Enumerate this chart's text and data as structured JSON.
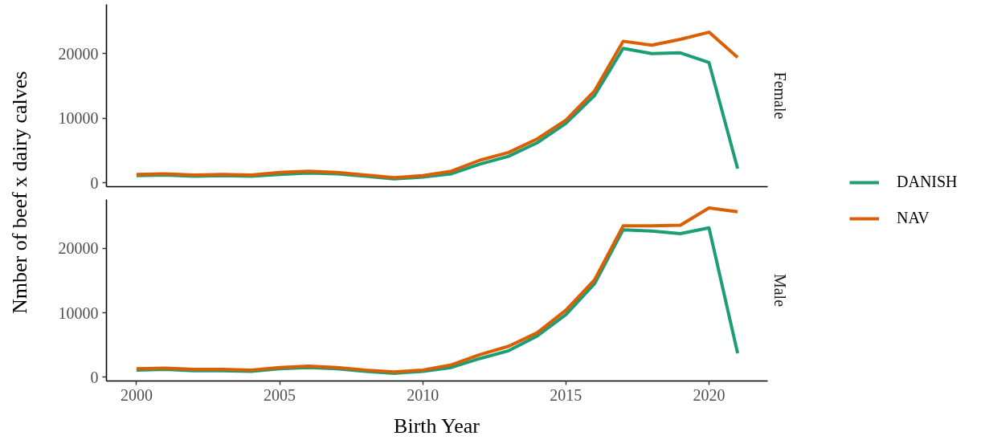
{
  "chart_data": [
    {
      "type": "line",
      "title": "Female",
      "ylabel": "Nmber of beef x dairy calves",
      "x": [
        2000,
        2001,
        2002,
        2003,
        2004,
        2005,
        2006,
        2007,
        2008,
        2009,
        2010,
        2011,
        2012,
        2013,
        2014,
        2015,
        2016,
        2017,
        2018,
        2019,
        2020,
        2021
      ],
      "series": [
        {
          "color": "#1b9e77",
          "values": [
            1100,
            1200,
            1000,
            1100,
            1000,
            1300,
            1500,
            1400,
            1000,
            600,
            900,
            1400,
            2900,
            4100,
            6200,
            9200,
            13500,
            20800,
            20000,
            20100,
            18600,
            2200
          ]
        },
        {
          "color": "#d95f02",
          "values": [
            1300,
            1400,
            1200,
            1300,
            1200,
            1600,
            1800,
            1600,
            1200,
            800,
            1100,
            1800,
            3500,
            4700,
            6800,
            9700,
            14200,
            21900,
            21300,
            22200,
            23300,
            19400
          ]
        }
      ],
      "xlim": [
        1998.95,
        2022.05
      ],
      "ylim": [
        -600,
        27600
      ],
      "yticks": [
        0,
        10000,
        20000
      ],
      "tick_labels": "y"
    },
    {
      "type": "line",
      "title": "Male",
      "xlabel": "Birth Year",
      "x": [
        2000,
        2001,
        2002,
        2003,
        2004,
        2005,
        2006,
        2007,
        2008,
        2009,
        2010,
        2011,
        2012,
        2013,
        2014,
        2015,
        2016,
        2017,
        2018,
        2019,
        2020,
        2021
      ],
      "series": [
        {
          "name": "DANISH",
          "color": "#1b9e77",
          "values": [
            1100,
            1200,
            1000,
            1000,
            900,
            1300,
            1500,
            1300,
            900,
            600,
            900,
            1500,
            2900,
            4100,
            6400,
            9700,
            14500,
            22900,
            22700,
            22300,
            23200,
            3700
          ]
        },
        {
          "name": "NAV",
          "color": "#d95f02",
          "values": [
            1300,
            1400,
            1200,
            1200,
            1100,
            1500,
            1700,
            1500,
            1100,
            800,
            1100,
            1900,
            3500,
            4800,
            6900,
            10400,
            15100,
            23500,
            23500,
            23600,
            26300,
            25700
          ]
        }
      ],
      "xlim": [
        1998.95,
        2022.05
      ],
      "xticks": [
        2000,
        2005,
        2010,
        2015,
        2020
      ],
      "ylim": [
        -600,
        27600
      ],
      "yticks": [
        0,
        10000,
        20000
      ],
      "legend": "right"
    }
  ]
}
